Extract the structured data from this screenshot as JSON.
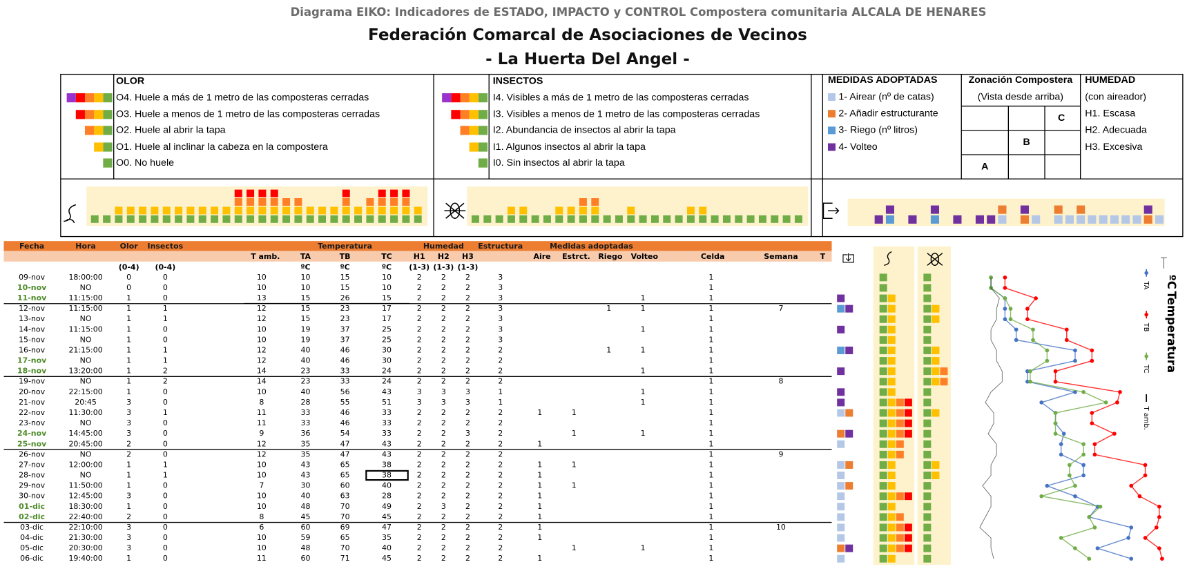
{
  "header": {
    "subtitle": "Diagrama  EIKO: Indicadores de ESTADO, IMPACTO y CONTROL  Compostera comunitaria  ALCALA  DE HENARES",
    "title": "Federación Comarcal de Asociaciones de Vecinos",
    "place": "- La Huerta Del Angel -"
  },
  "legend": {
    "olor": {
      "title": "OLOR",
      "items": [
        "O4. Huele a más de 1 metro de las composteras cerradas",
        "O3. Huele a menos de 1 metro de las composteras cerradas",
        "O2. Huele al abrir la tapa",
        "O1. Huele al inclinar la cabeza en la compostera",
        "O0. No huele"
      ]
    },
    "insectos": {
      "title": "INSECTOS",
      "items": [
        "I4. Visibles a más de 1 metro de las composteras cerradas",
        "I3. Visibles a menos de 1 metro de las composteras cerradas",
        "I2.  Abundancia de insectos  al abrir la tapa",
        "I1. Algunos insectos  al abrir la tapa",
        "I0. Sin insectos  al abrir la tapa"
      ]
    },
    "medidas": {
      "title": "MEDIDAS ADOPTADAS",
      "items": [
        {
          "label": "1- Airear (nº de catas)",
          "color": "#b4c7e7"
        },
        {
          "label": "2- Añadir estructurante",
          "color": "#ed7d31"
        },
        {
          "label": "3-  Riego (nº litros)",
          "color": "#5b9bd5"
        },
        {
          "label": "4- Volteo",
          "color": "#7030a0"
        }
      ]
    },
    "zonacion": {
      "title": "Zonación Compostera",
      "subtitle": "(Vista desde arriba)",
      "cells": [
        "C",
        "B",
        "A"
      ]
    },
    "humedad": {
      "title": "HUMEDAD",
      "subtitle": "(con aireador)",
      "items": [
        "H1. Escasa",
        "H2. Adecuada",
        "H3. Excesiva"
      ]
    }
  },
  "level_colors": [
    "#70ad47",
    "#ffc000",
    "#ff7f27",
    "#ff0000",
    "#9933cc"
  ],
  "table": {
    "group_headers": [
      "Fecha",
      "Hora",
      "Olor",
      "Insectos",
      "Temperatura",
      "Humedad",
      "Estructura",
      "Medidas adoptadas"
    ],
    "headers": [
      "T amb.",
      "TA",
      "TB",
      "TC",
      "H1",
      "H2",
      "H3",
      "Aire",
      "Estrct.",
      "Riego",
      "Volteo",
      "Celda",
      "Semana",
      "T"
    ],
    "units": [
      "(0-4)",
      "(0-4)",
      "ºC",
      "ºC",
      "ºC",
      "(1-3)",
      "(1-3)",
      "(1-3)"
    ],
    "rows": [
      [
        "09-nov",
        "18:00:00",
        0,
        0,
        10,
        10,
        15,
        10,
        2,
        2,
        2,
        3,
        null,
        null,
        null,
        null,
        1,
        null
      ],
      [
        "10-nov",
        "NO",
        0,
        0,
        10,
        10,
        15,
        10,
        2,
        2,
        2,
        3,
        null,
        null,
        null,
        null,
        1,
        null
      ],
      [
        "11-nov",
        "11:15:00",
        1,
        0,
        13,
        15,
        26,
        15,
        2,
        2,
        2,
        3,
        null,
        null,
        null,
        1,
        1,
        null
      ],
      [
        "12-nov",
        "11:15:00",
        1,
        1,
        12,
        15,
        23,
        17,
        2,
        2,
        2,
        3,
        null,
        null,
        1,
        1,
        1,
        7
      ],
      [
        "13-nov",
        "NO",
        1,
        1,
        12,
        15,
        23,
        17,
        2,
        2,
        2,
        3,
        null,
        null,
        null,
        null,
        1,
        null
      ],
      [
        "14-nov",
        "11:15:00",
        1,
        0,
        10,
        19,
        37,
        25,
        2,
        2,
        2,
        3,
        null,
        null,
        null,
        1,
        1,
        null
      ],
      [
        "15-nov",
        "NO",
        1,
        0,
        10,
        19,
        37,
        25,
        2,
        2,
        2,
        3,
        null,
        null,
        null,
        null,
        1,
        null
      ],
      [
        "16-nov",
        "21:15:00",
        1,
        1,
        12,
        40,
        46,
        30,
        2,
        2,
        2,
        2,
        null,
        null,
        1,
        1,
        1,
        null
      ],
      [
        "17-nov",
        "NO",
        1,
        1,
        12,
        40,
        46,
        30,
        2,
        2,
        2,
        2,
        null,
        null,
        null,
        null,
        1,
        null
      ],
      [
        "18-nov",
        "13:20:00",
        1,
        2,
        14,
        23,
        33,
        24,
        2,
        2,
        2,
        2,
        null,
        null,
        null,
        1,
        1,
        null
      ],
      [
        "19-nov",
        "NO",
        1,
        2,
        14,
        23,
        33,
        24,
        2,
        2,
        2,
        2,
        null,
        null,
        null,
        null,
        1,
        8
      ],
      [
        "20-nov",
        "22:15:00",
        1,
        0,
        10,
        40,
        56,
        43,
        3,
        3,
        3,
        1,
        null,
        null,
        null,
        1,
        1,
        null
      ],
      [
        "21-nov",
        "20:45",
        3,
        0,
        8,
        28,
        55,
        51,
        3,
        3,
        3,
        1,
        null,
        null,
        null,
        1,
        1,
        null
      ],
      [
        "22-nov",
        "11:30:00",
        3,
        1,
        11,
        33,
        46,
        33,
        2,
        2,
        2,
        2,
        1,
        1,
        null,
        null,
        1,
        null
      ],
      [
        "23-nov",
        "NO",
        3,
        0,
        11,
        33,
        46,
        33,
        2,
        2,
        2,
        2,
        null,
        null,
        null,
        null,
        1,
        null
      ],
      [
        "24-nov",
        "14:45:00",
        3,
        0,
        9,
        36,
        54,
        33,
        2,
        2,
        3,
        2,
        null,
        1,
        null,
        1,
        1,
        null
      ],
      [
        "25-nov",
        "20:45:00",
        2,
        0,
        12,
        35,
        47,
        43,
        2,
        2,
        2,
        2,
        1,
        null,
        null,
        null,
        1,
        null
      ],
      [
        "26-nov",
        "NO",
        2,
        0,
        12,
        35,
        47,
        43,
        2,
        2,
        2,
        2,
        null,
        null,
        null,
        null,
        1,
        9
      ],
      [
        "27-nov",
        "12:00:00",
        1,
        1,
        10,
        43,
        65,
        38,
        2,
        2,
        2,
        2,
        1,
        1,
        null,
        null,
        1,
        null
      ],
      [
        "28-nov",
        "NO",
        1,
        1,
        10,
        43,
        65,
        38,
        2,
        2,
        2,
        2,
        1,
        null,
        null,
        null,
        1,
        null
      ],
      [
        "29-nov",
        "11:50:00",
        1,
        0,
        7,
        30,
        60,
        40,
        2,
        2,
        2,
        2,
        1,
        1,
        null,
        null,
        1,
        null
      ],
      [
        "30-nov",
        "12:45:00",
        3,
        0,
        10,
        40,
        63,
        28,
        2,
        2,
        2,
        2,
        1,
        null,
        null,
        null,
        1,
        null
      ],
      [
        "01-dic",
        "18:30:00",
        1,
        0,
        10,
        48,
        70,
        49,
        2,
        3,
        2,
        2,
        1,
        null,
        null,
        null,
        1,
        null
      ],
      [
        "02-dic",
        "22:40:00",
        2,
        0,
        8,
        45,
        70,
        45,
        2,
        2,
        2,
        2,
        1,
        null,
        null,
        null,
        1,
        null
      ],
      [
        "03-dic",
        "22:10:00",
        3,
        0,
        6,
        60,
        69,
        47,
        2,
        2,
        2,
        2,
        1,
        null,
        null,
        null,
        1,
        10
      ],
      [
        "04-dic",
        "21:30:00",
        3,
        0,
        10,
        59,
        65,
        35,
        2,
        2,
        2,
        2,
        1,
        null,
        null,
        null,
        1,
        null
      ],
      [
        "05-dic",
        "20:30:00",
        3,
        0,
        10,
        48,
        70,
        40,
        2,
        2,
        2,
        2,
        null,
        1,
        null,
        1,
        1,
        null
      ],
      [
        "06-dic",
        "19:40:00",
        1,
        0,
        11,
        60,
        71,
        45,
        2,
        2,
        2,
        2,
        1,
        null,
        null,
        null,
        1,
        null
      ]
    ]
  },
  "temperature_chart": {
    "title": "Temperatura",
    "unit": "ºC",
    "series": [
      {
        "name": "TA",
        "color": "#4472c4"
      },
      {
        "name": "TB",
        "color": "#ff0000"
      },
      {
        "name": "TC",
        "color": "#70ad47"
      },
      {
        "name": "T amb.",
        "color": "#000000"
      }
    ]
  }
}
